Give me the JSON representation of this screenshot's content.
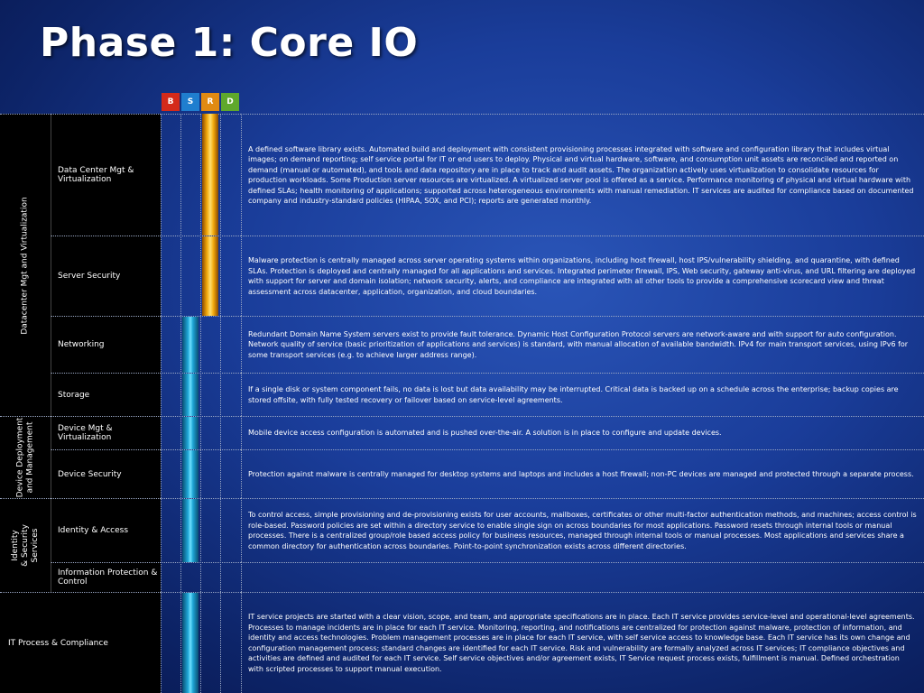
{
  "title": "Phase 1: Core IO",
  "legend": {
    "b": "B",
    "s": "S",
    "r": "R",
    "d": "D"
  },
  "colors": {
    "b": "#d42a1a",
    "s": "#1f7ecf",
    "r": "#e08a12",
    "d": "#5fa82c"
  },
  "categories": {
    "datacenter": "Datacenter Mgt and Virtualization",
    "device_line1": "Device Deployment",
    "device_line2": "and Management",
    "identity_line1": "Identity",
    "identity_line2": "& Security",
    "identity_line3": "Services",
    "itprocess": "IT Process & Compliance"
  },
  "rows": [
    {
      "label": "Data Center Mgt & Virtualization",
      "desc": "A defined software library exists. Automated build and deployment with consistent provisioning processes integrated with software and configuration library that includes virtual images; on demand reporting; self service portal for IT or end users to deploy.  Physical and virtual hardware, software, and consumption unit assets are reconciled and reported on demand (manual or automated), and tools and data repository are in place to track and audit assets.  The organization actively uses virtualization to consolidate resources for production workloads. Some Production server resources are virtualized. A virtualized server pool is offered as a service. Performance monitoring of physical and virtual hardware with defined SLAs; health monitoring of applications; supported across heterogeneous environments with manual remediation. IT services are audited for compliance based on documented company and industry-standard policies (HIPAA, SOX, and PCI); reports are generated monthly."
    },
    {
      "label": "Server Security",
      "desc": "Malware protection is centrally managed across server operating systems within organizations, including host firewall, host IPS/vulnerability shielding, and quarantine, with defined SLAs. Protection is deployed and centrally managed for all applications and services. Integrated perimeter firewall, IPS, Web security, gateway anti-virus, and URL filtering are deployed with support for server and domain isolation; network security, alerts, and compliance are integrated with all other tools to provide a comprehensive scorecard view and threat assessment across datacenter, application, organization, and cloud boundaries."
    },
    {
      "label": "Networking",
      "desc": "Redundant Domain Name System servers exist to provide fault tolerance. Dynamic Host Configuration Protocol servers are network-aware and with support for auto configuration. Network quality of service (basic prioritization of applications and services) is standard, with manual allocation of available bandwidth.   IPv4 for main transport services, using IPv6 for some transport services (e.g. to achieve larger address range)."
    },
    {
      "label": "Storage",
      "desc": "If a single disk or system component fails, no data is lost but data availability may be interrupted. Critical data is backed up on a schedule across the enterprise; backup copies are stored offsite, with fully tested recovery or failover based on service-level agreements."
    },
    {
      "label": "Device Mgt & Virtualization",
      "desc": "Mobile device access configuration is automated and is pushed over-the-air. A solution is in place to configure and update devices."
    },
    {
      "label": "Device Security",
      "desc": "Protection against malware is centrally managed for desktop systems and laptops and includes a host firewall; non-PC devices are managed and protected through a separate process."
    },
    {
      "label": "Identity & Access",
      "desc": "To control access, simple provisioning and de-provisioning exists for user accounts, mailboxes, certificates or other multi-factor authentication methods, and machines; access control is role-based.  Password policies are set within a directory service to enable single sign on across boundaries for most applications. Password resets through internal tools or manual processes. There is a centralized group/role based access policy for business resources, managed through internal tools or manual processes. Most applications and services share a common directory for authentication across boundaries. Point-to-point synchronization exists across different directories."
    },
    {
      "label": "Information Protection & Control",
      "desc": ""
    },
    {
      "label": "IT Process & Compliance",
      "desc": "IT service projects are started with a clear vision, scope, and team, and appropriate specifications are in place.   Each IT service provides service-level and operational-level agreements. Processes to manage incidents are in place for each IT service. Monitoring, reporting, and notifications are centralized for protection against malware, protection of information, and identity and access technologies. Problem management processes are in place for each IT service, with self service access to knowledge base. Each IT service has its own change and configuration management process; standard changes are identified for each IT service.  Risk and vulnerability are formally analyzed across IT services; IT compliance objectives and activities are defined and audited for each IT service. Self service objectives and/or agreement exists, IT Service request process exists, fulfillment is manual. Defined orchestration with scripted processes to support manual execution."
    }
  ]
}
